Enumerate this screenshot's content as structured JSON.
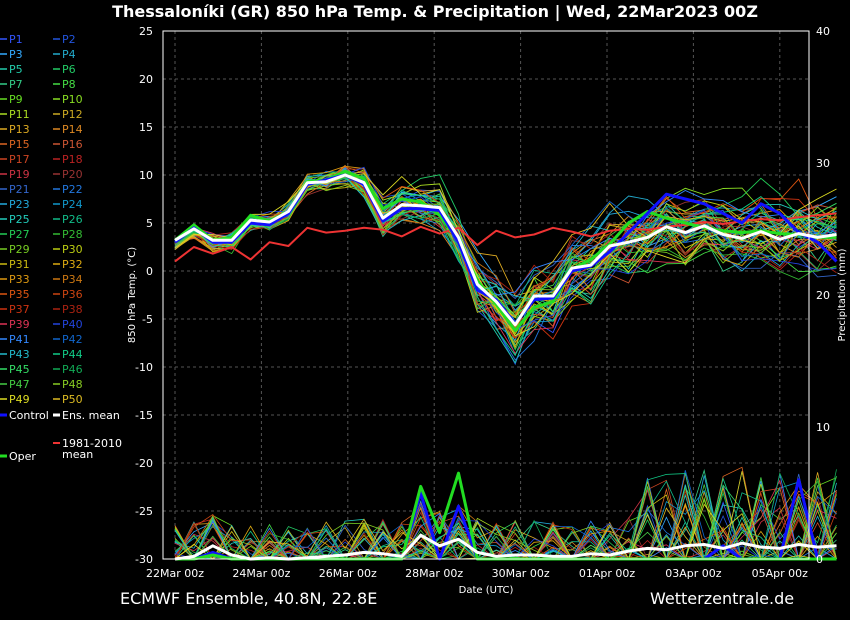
{
  "header": {
    "title": "Thessaloníki  (GR)  850 hPa Temp. & Precipitation | Wed, 22Mar2023 00Z"
  },
  "footer": {
    "left": "ECMWF Ensemble, 40.8N, 22.8E",
    "right": "Wetterzentrale.de"
  },
  "colors": {
    "background": "#000000",
    "control": "#1010ff",
    "ens_mean": "#ffffff",
    "oper": "#22dd22",
    "climate": "#ee3333",
    "grid": "#555555"
  },
  "chart_data": {
    "type": "line",
    "xlabel": "Date (UTC)",
    "ylabel_left": "850 hPa Temp. (°C)",
    "ylabel_right": "Precipitation (mm)",
    "x_range": [
      "2023-03-22T00",
      "2023-04-07T00"
    ],
    "x_ticks": [
      "22Mar 00z",
      "24Mar 00z",
      "26Mar 00z",
      "28Mar 00z",
      "30Mar 00z",
      "01Apr 00z",
      "03Apr 00z",
      "05Apr 00z"
    ],
    "ylim_temp": [
      -30,
      25
    ],
    "yticks_temp": [
      25,
      20,
      15,
      10,
      5,
      0,
      -5,
      -10,
      -15,
      -20,
      -25,
      -30
    ],
    "ylim_precip": [
      0,
      40
    ],
    "yticks_precip": [
      40,
      30,
      20,
      10,
      0
    ],
    "grid": true,
    "legend_placement": "left",
    "legend": {
      "members": [
        "P1",
        "P2",
        "P3",
        "P4",
        "P5",
        "P6",
        "P7",
        "P8",
        "P9",
        "P10",
        "P11",
        "P12",
        "P13",
        "P14",
        "P15",
        "P16",
        "P17",
        "P18",
        "P19",
        "P20",
        "P21",
        "P22",
        "P23",
        "P24",
        "P25",
        "P26",
        "P27",
        "P28",
        "P29",
        "P30",
        "P31",
        "P32",
        "P33",
        "P34",
        "P35",
        "P36",
        "P37",
        "P38",
        "P39",
        "P40",
        "P41",
        "P42",
        "P43",
        "P44",
        "P45",
        "P46",
        "P47",
        "P48",
        "P49",
        "P50"
      ],
      "member_colors": [
        "#3355ff",
        "#2255dd",
        "#33aaff",
        "#22aacc",
        "#22ccaa",
        "#22cc66",
        "#33cc88",
        "#44dd44",
        "#66dd22",
        "#88dd22",
        "#aadd22",
        "#ccaa22",
        "#ddaa22",
        "#dd8822",
        "#dd6622",
        "#cc5533",
        "#cc4422",
        "#bb2222",
        "#cc3344",
        "#993333",
        "#3366cc",
        "#2277dd",
        "#22aadd",
        "#1199cc",
        "#22ccbb",
        "#11bb88",
        "#22cc55",
        "#33bb33",
        "#77cc22",
        "#bbcc11",
        "#ccbb11",
        "#ddaa11",
        "#dd9911",
        "#cc7711",
        "#dd5511",
        "#cc4411",
        "#cc3311",
        "#aa2211",
        "#dd3355",
        "#2244dd",
        "#3388ff",
        "#1166cc",
        "#22bbcc",
        "#11cc88",
        "#33dd66",
        "#11aa55",
        "#44cc44",
        "#88cc22",
        "#dddd22",
        "#ddbb22"
      ],
      "control": "Control",
      "ens_mean": "Ens. mean",
      "oper": "Oper",
      "climate": "1981-2010 mean"
    },
    "series": [
      {
        "name": "Control",
        "axis": "temp",
        "values": [
          3,
          4.5,
          3,
          3,
          5,
          4.8,
          6,
          9,
          9.5,
          10,
          9,
          5.2,
          6.5,
          6.5,
          6.3,
          3,
          -2,
          -3,
          -5.5,
          -3,
          -2.8,
          0,
          0.5,
          2,
          4,
          6,
          8,
          7.5,
          7,
          6,
          5,
          7,
          6,
          4,
          3,
          1
        ]
      },
      {
        "name": "Ens. mean",
        "axis": "temp",
        "values": [
          3.2,
          4.4,
          3.2,
          3.2,
          5.3,
          5.1,
          6.2,
          9.2,
          9.3,
          10,
          9.2,
          5.5,
          6.9,
          6.8,
          6.6,
          3.5,
          -1.4,
          -3.2,
          -5.6,
          -2.6,
          -2.6,
          0.3,
          0.6,
          2.6,
          3,
          3.5,
          4.6,
          4,
          4.7,
          3.8,
          3.4,
          4.1,
          3.3,
          3.9,
          3.5,
          3.8
        ]
      },
      {
        "name": "Oper",
        "axis": "temp",
        "values": [
          3.2,
          4.8,
          3.2,
          3.5,
          5.8,
          5.2,
          6.2,
          9.3,
          9.5,
          10.4,
          9.6,
          6.5,
          7.5,
          7.2,
          5.8,
          3.2,
          -1,
          -3.5,
          -6.2,
          -3.8,
          -3.2,
          0.2,
          1.2,
          2.8,
          5,
          6.2,
          5.5,
          5,
          4.5,
          4.2,
          4,
          4.2,
          3.9,
          3.8,
          3.5,
          3.5
        ]
      },
      {
        "name": "1981-2010 mean",
        "axis": "temp",
        "values": [
          1,
          2.5,
          1.8,
          2.5,
          1.2,
          3,
          2.6,
          4.5,
          4,
          4.2,
          4.5,
          4.3,
          3.6,
          4.6,
          3.9,
          4.5,
          2.7,
          4.2,
          3.5,
          3.8,
          4.5,
          4.1,
          3.6,
          4.2,
          4.4,
          4.3,
          4.6,
          4.8,
          5.1,
          4.9,
          5.2,
          5.4,
          5.3,
          5.6,
          5.8,
          6.0
        ]
      },
      {
        "name": "Ens. mean precip",
        "axis": "precip",
        "values": [
          0,
          0.2,
          1,
          0.3,
          0,
          0.1,
          0,
          0.1,
          0.2,
          0.3,
          0.5,
          0.4,
          0.2,
          1.8,
          1,
          1.5,
          0.5,
          0.2,
          0.3,
          0.3,
          0.2,
          0.2,
          0.4,
          0.3,
          0.6,
          0.8,
          0.7,
          1,
          1.1,
          0.8,
          1.2,
          0.9,
          0.8,
          1.1,
          0.9,
          1
        ]
      },
      {
        "name": "Control precip",
        "axis": "precip",
        "values": [
          0,
          0,
          0.5,
          0,
          0,
          0,
          0,
          0,
          0,
          0,
          0,
          0,
          0,
          5,
          0,
          4,
          0,
          0,
          0,
          0,
          0,
          0,
          0,
          0,
          0,
          0,
          0,
          0,
          0,
          1,
          0,
          0,
          0,
          6,
          0,
          0
        ]
      },
      {
        "name": "Oper precip",
        "axis": "precip",
        "values": [
          0,
          0,
          0.3,
          0,
          0,
          0,
          0,
          0,
          0,
          0,
          0,
          0,
          0,
          5.5,
          2,
          6.5,
          0,
          0,
          0,
          0,
          0,
          0,
          0,
          0,
          0,
          0,
          0,
          0,
          0,
          0,
          0,
          0,
          0,
          0,
          0,
          0
        ]
      }
    ]
  }
}
